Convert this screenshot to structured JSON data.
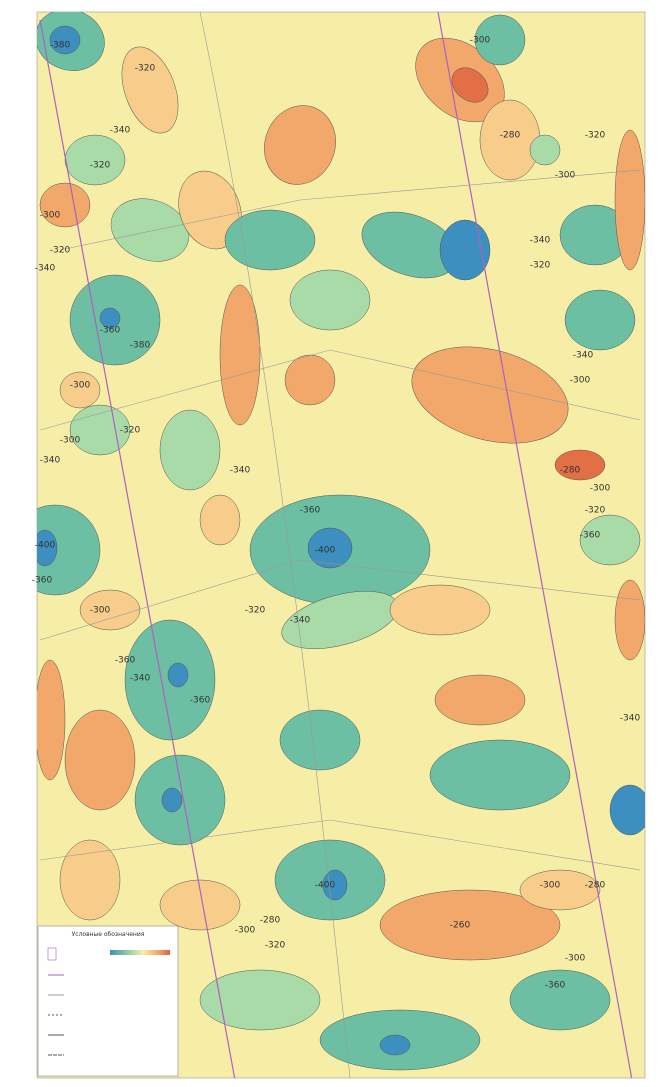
{
  "map": {
    "contour_labels": [
      "-380",
      "-320",
      "-340",
      "-320",
      "-300",
      "-320",
      "-340",
      "-380",
      "-360",
      "-300",
      "-300",
      "-340",
      "-400",
      "-360",
      "-300",
      "-360",
      "-340",
      "-300",
      "-280",
      "-320",
      "-300",
      "-340",
      "-320",
      "-340",
      "-300",
      "-280",
      "-300",
      "-320",
      "-360",
      "-340",
      "-280",
      "-300",
      "-360",
      "-400",
      "-360",
      "-320",
      "-340",
      "-400",
      "-280",
      "-300",
      "-320",
      "-260",
      "-300",
      "-340",
      "-360",
      "-320"
    ]
  },
  "legend": {
    "title": "Условные обозначения"
  }
}
